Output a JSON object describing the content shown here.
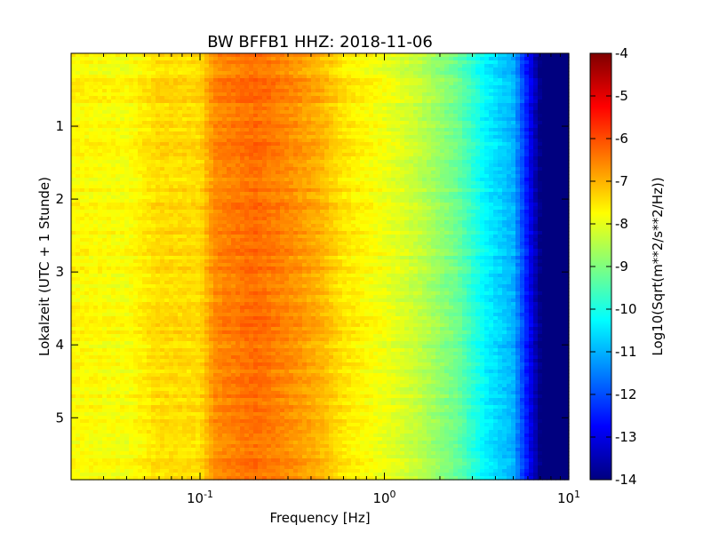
{
  "chart_data": {
    "type": "heatmap",
    "title": "BW BFFB1 HHZ: 2018-11-06",
    "xlabel": "Frequency [Hz]",
    "ylabel": "Lokalzeit (UTC + 1 Stunde)",
    "x_scale": "log",
    "xlim": [
      0.02,
      10
    ],
    "ylim": [
      5.85,
      0
    ],
    "x_ticks": [
      {
        "value": 0.1,
        "base": "10",
        "exp": "-1"
      },
      {
        "value": 1,
        "base": "10",
        "exp": "0"
      },
      {
        "value": 10,
        "base": "10",
        "exp": "1"
      }
    ],
    "y_ticks": [
      {
        "value": 1,
        "label": "1"
      },
      {
        "value": 2,
        "label": "2"
      },
      {
        "value": 3,
        "label": "3"
      },
      {
        "value": 4,
        "label": "4"
      },
      {
        "value": 5,
        "label": "5"
      }
    ],
    "colormap": "jet",
    "colorbar": {
      "label": "Log10(Sqrt(m**2/s**2/Hz))",
      "range": [
        -14,
        -4
      ],
      "ticks": [
        "-4",
        "-5",
        "-6",
        "-7",
        "-8",
        "-9",
        "-10",
        "-11",
        "-12",
        "-13",
        "-14"
      ]
    },
    "spectrum_profile": {
      "frequency_hz": [
        0.02,
        0.04,
        0.06,
        0.1,
        0.12,
        0.2,
        0.3,
        0.45,
        0.6,
        1.0,
        1.5,
        2.5,
        3.5,
        5.0,
        7.0,
        10.0
      ],
      "log10_amplitude": [
        -7.7,
        -7.8,
        -7.4,
        -7.4,
        -6.6,
        -6.3,
        -6.6,
        -7.0,
        -7.5,
        -7.9,
        -8.3,
        -9.2,
        -10.3,
        -11.0,
        -14.0,
        -14.0
      ]
    },
    "time_rows": 120
  },
  "colors": {
    "jet": [
      "#00007f",
      "#0000ff",
      "#007fff",
      "#00ffff",
      "#7fff7f",
      "#ffff00",
      "#ff7f00",
      "#ff0000",
      "#7f0000"
    ]
  }
}
